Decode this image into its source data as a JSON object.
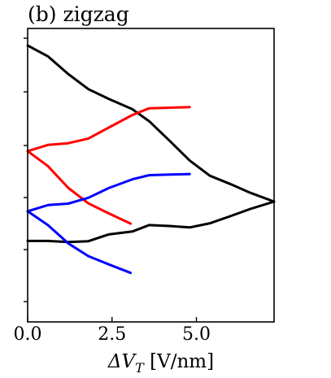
{
  "chart_data": {
    "type": "line",
    "title": "(b) zigzag",
    "xlabel_parts": {
      "prefix": "ΔV",
      "subscript": "T",
      "suffix": " [V/nm]"
    },
    "ylabel": "",
    "xlim": [
      0,
      7.3
    ],
    "ylim": [
      0,
      1
    ],
    "xticks": [
      0.0,
      2.5,
      5.0
    ],
    "xtick_labels": [
      "0.0",
      "2.5",
      "5.0"
    ],
    "ytick_count": 6,
    "grid": false,
    "legend": "none",
    "series": [
      {
        "color": "#000000",
        "x": [
          0,
          0.6,
          1.2,
          1.8,
          2.4,
          3.1,
          3.6,
          4.2,
          4.8,
          5.4,
          6.0,
          6.6,
          7.3
        ],
        "y": [
          0.942,
          0.905,
          0.845,
          0.793,
          0.76,
          0.725,
          0.684,
          0.618,
          0.55,
          0.498,
          0.47,
          0.44,
          0.41
        ]
      },
      {
        "color": "#000000",
        "x": [
          0,
          0.6,
          1.2,
          1.8,
          2.4,
          3.1,
          3.6,
          4.2,
          4.8,
          5.4,
          6.0,
          6.6,
          7.3
        ],
        "y": [
          0.276,
          0.276,
          0.272,
          0.275,
          0.298,
          0.308,
          0.33,
          0.327,
          0.322,
          0.336,
          0.36,
          0.385,
          0.41
        ]
      },
      {
        "color": "#ff0000",
        "x": [
          0,
          0.6,
          1.2,
          1.8,
          2.4,
          3.1,
          3.6,
          4.2,
          4.8
        ],
        "y": [
          0.582,
          0.603,
          0.609,
          0.625,
          0.662,
          0.705,
          0.728,
          0.73,
          0.732
        ]
      },
      {
        "color": "#ff0000",
        "x": [
          0,
          0.6,
          1.2,
          1.8,
          2.4,
          3.05
        ],
        "y": [
          0.582,
          0.531,
          0.457,
          0.404,
          0.37,
          0.335
        ]
      },
      {
        "color": "#0000ff",
        "x": [
          0,
          0.6,
          1.2,
          1.8,
          2.4,
          3.1,
          3.6,
          4.2,
          4.8
        ],
        "y": [
          0.377,
          0.398,
          0.403,
          0.423,
          0.456,
          0.486,
          0.5,
          0.502,
          0.504
        ]
      },
      {
        "color": "#0000ff",
        "x": [
          0,
          0.6,
          1.2,
          1.8,
          2.4,
          3.05
        ],
        "y": [
          0.377,
          0.33,
          0.268,
          0.224,
          0.196,
          0.167
        ]
      }
    ]
  }
}
